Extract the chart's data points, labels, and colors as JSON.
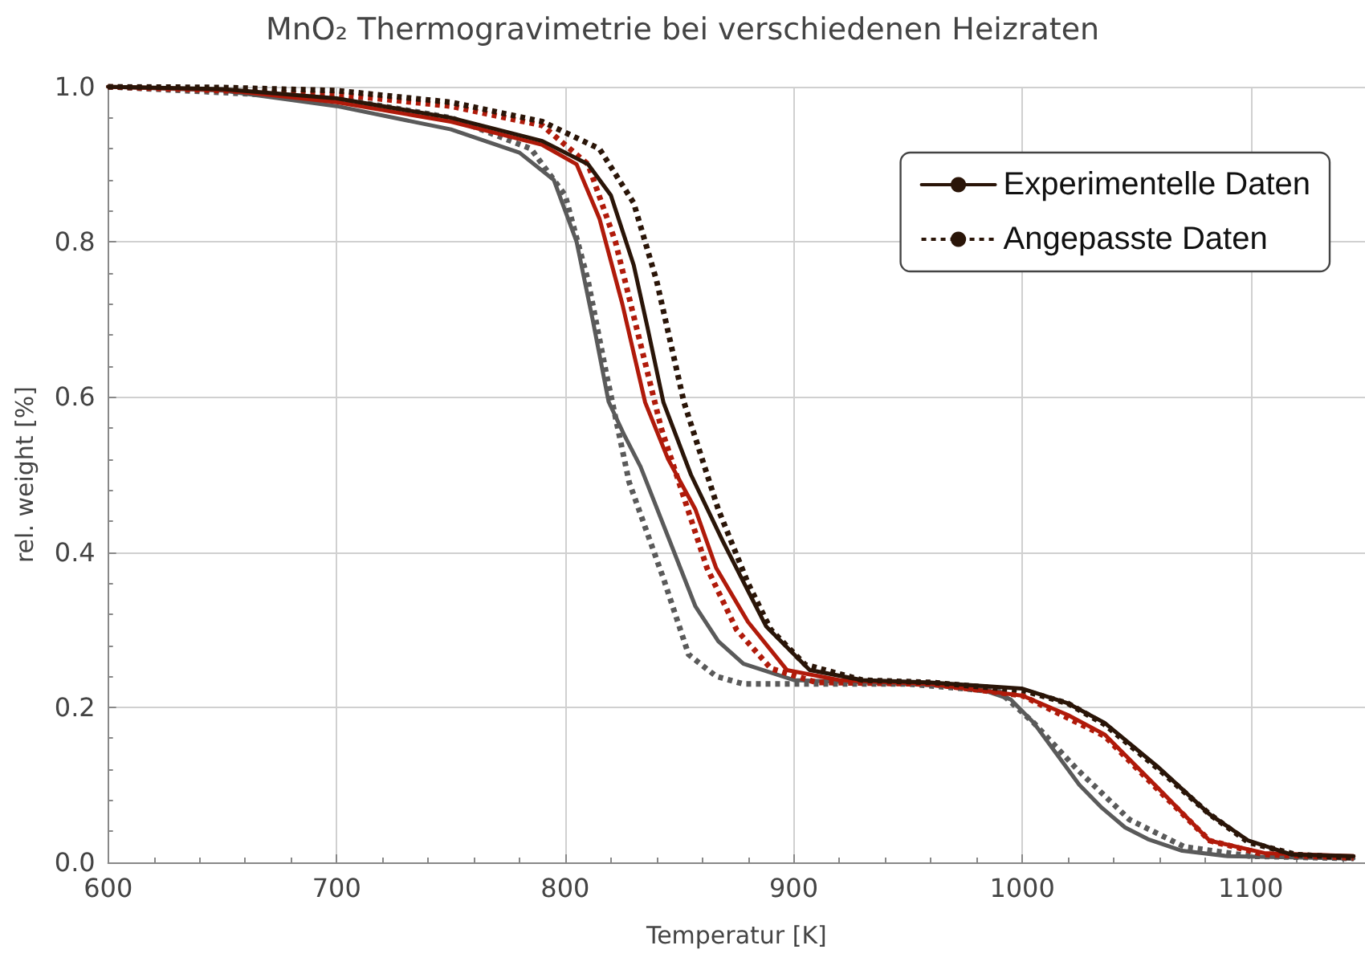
{
  "chart_data": {
    "type": "line",
    "title": "MnO₂ Thermogravimetrie bei verschiedenen Heizraten",
    "xlabel": "Temperatur [K]",
    "ylabel": "rel. weight [%]",
    "xlim": [
      600,
      1150
    ],
    "xticks": [
      600,
      700,
      800,
      900,
      1000,
      1100
    ],
    "ylim": [
      0,
      1
    ],
    "yticks": [
      {
        "value": 0,
        "label": "0.0"
      },
      {
        "value": 0.2,
        "label": "0.2"
      },
      {
        "value": 0.4,
        "label": "0.4"
      },
      {
        "value": 0.6,
        "label": "0.6"
      },
      {
        "value": 0.8,
        "label": "0.8"
      },
      {
        "value": 1,
        "label": "1.0"
      }
    ],
    "grid": true,
    "legend": "top right",
    "marker": "none",
    "series": [
      {
        "color": "#5a5a5a",
        "line_style": "solid",
        "x": [
          600,
          650,
          700,
          750,
          780,
          795,
          805,
          812,
          819,
          826,
          833,
          845,
          857,
          867,
          878,
          900,
          950,
          980,
          995,
          1005,
          1015,
          1025,
          1035,
          1045,
          1055,
          1070,
          1090,
          1145
        ],
        "values": [
          1.0,
          0.995,
          0.975,
          0.945,
          0.915,
          0.88,
          0.8,
          0.7,
          0.594,
          0.55,
          0.51,
          0.42,
          0.33,
          0.285,
          0.256,
          0.235,
          0.23,
          0.225,
          0.21,
          0.18,
          0.14,
          0.1,
          0.07,
          0.045,
          0.03,
          0.015,
          0.008,
          0.005
        ]
      },
      {
        "color": "#5a5a5a",
        "line_style": "dotted",
        "x": [
          600,
          700,
          750,
          785,
          800,
          810,
          818,
          828,
          843,
          854,
          866,
          878,
          950,
          990,
          1005,
          1024,
          1047,
          1071,
          1100,
          1145
        ],
        "values": [
          1.0,
          0.985,
          0.96,
          0.92,
          0.86,
          0.75,
          0.63,
          0.49,
          0.366,
          0.268,
          0.24,
          0.23,
          0.23,
          0.22,
          0.18,
          0.12,
          0.055,
          0.02,
          0.008,
          0.005
        ]
      },
      {
        "color": "#b01a0a",
        "line_style": "solid",
        "x": [
          600,
          650,
          700,
          750,
          790,
          805,
          815,
          825,
          835,
          845,
          857,
          866,
          880,
          897,
          920,
          960,
          1000,
          1020,
          1036,
          1059,
          1082,
          1106,
          1145
        ],
        "values": [
          1.0,
          0.996,
          0.98,
          0.955,
          0.925,
          0.9,
          0.83,
          0.72,
          0.593,
          0.52,
          0.455,
          0.38,
          0.31,
          0.248,
          0.235,
          0.23,
          0.215,
          0.19,
          0.165,
          0.097,
          0.028,
          0.012,
          0.008
        ]
      },
      {
        "color": "#b01a0a",
        "line_style": "dotted",
        "x": [
          600,
          700,
          750,
          790,
          810,
          822,
          832,
          842,
          852,
          862,
          875,
          890,
          910,
          960,
          1000,
          1036,
          1059,
          1082,
          1106,
          1145
        ],
        "values": [
          1.0,
          0.99,
          0.975,
          0.95,
          0.9,
          0.8,
          0.68,
          0.56,
          0.47,
          0.38,
          0.3,
          0.25,
          0.232,
          0.23,
          0.215,
          0.163,
          0.095,
          0.028,
          0.01,
          0.006
        ]
      },
      {
        "name": "Experimentelle Daten",
        "color": "#2a1508",
        "line_style": "solid",
        "x": [
          600,
          650,
          700,
          750,
          790,
          810,
          820,
          830,
          836,
          843,
          855,
          869,
          880,
          888,
          907,
          930,
          960,
          1000,
          1020,
          1036,
          1059,
          1082,
          1099,
          1118,
          1145
        ],
        "values": [
          1.0,
          0.997,
          0.985,
          0.96,
          0.93,
          0.9,
          0.86,
          0.77,
          0.69,
          0.593,
          0.5,
          0.414,
          0.35,
          0.304,
          0.248,
          0.235,
          0.232,
          0.224,
          0.205,
          0.18,
          0.124,
          0.062,
          0.028,
          0.01,
          0.008
        ]
      },
      {
        "name": "Angepasste Daten",
        "color": "#2a1508",
        "line_style": "dotted",
        "x": [
          600,
          650,
          700,
          750,
          790,
          815,
          830,
          840,
          852,
          867,
          880,
          890,
          905,
          930,
          960,
          1000,
          1020,
          1036,
          1059,
          1082,
          1099,
          1120,
          1145
        ],
        "values": [
          1.0,
          0.999,
          0.995,
          0.98,
          0.955,
          0.92,
          0.85,
          0.75,
          0.593,
          0.455,
          0.36,
          0.3,
          0.255,
          0.235,
          0.232,
          0.222,
          0.205,
          0.178,
          0.122,
          0.062,
          0.026,
          0.01,
          0.006
        ]
      }
    ]
  }
}
